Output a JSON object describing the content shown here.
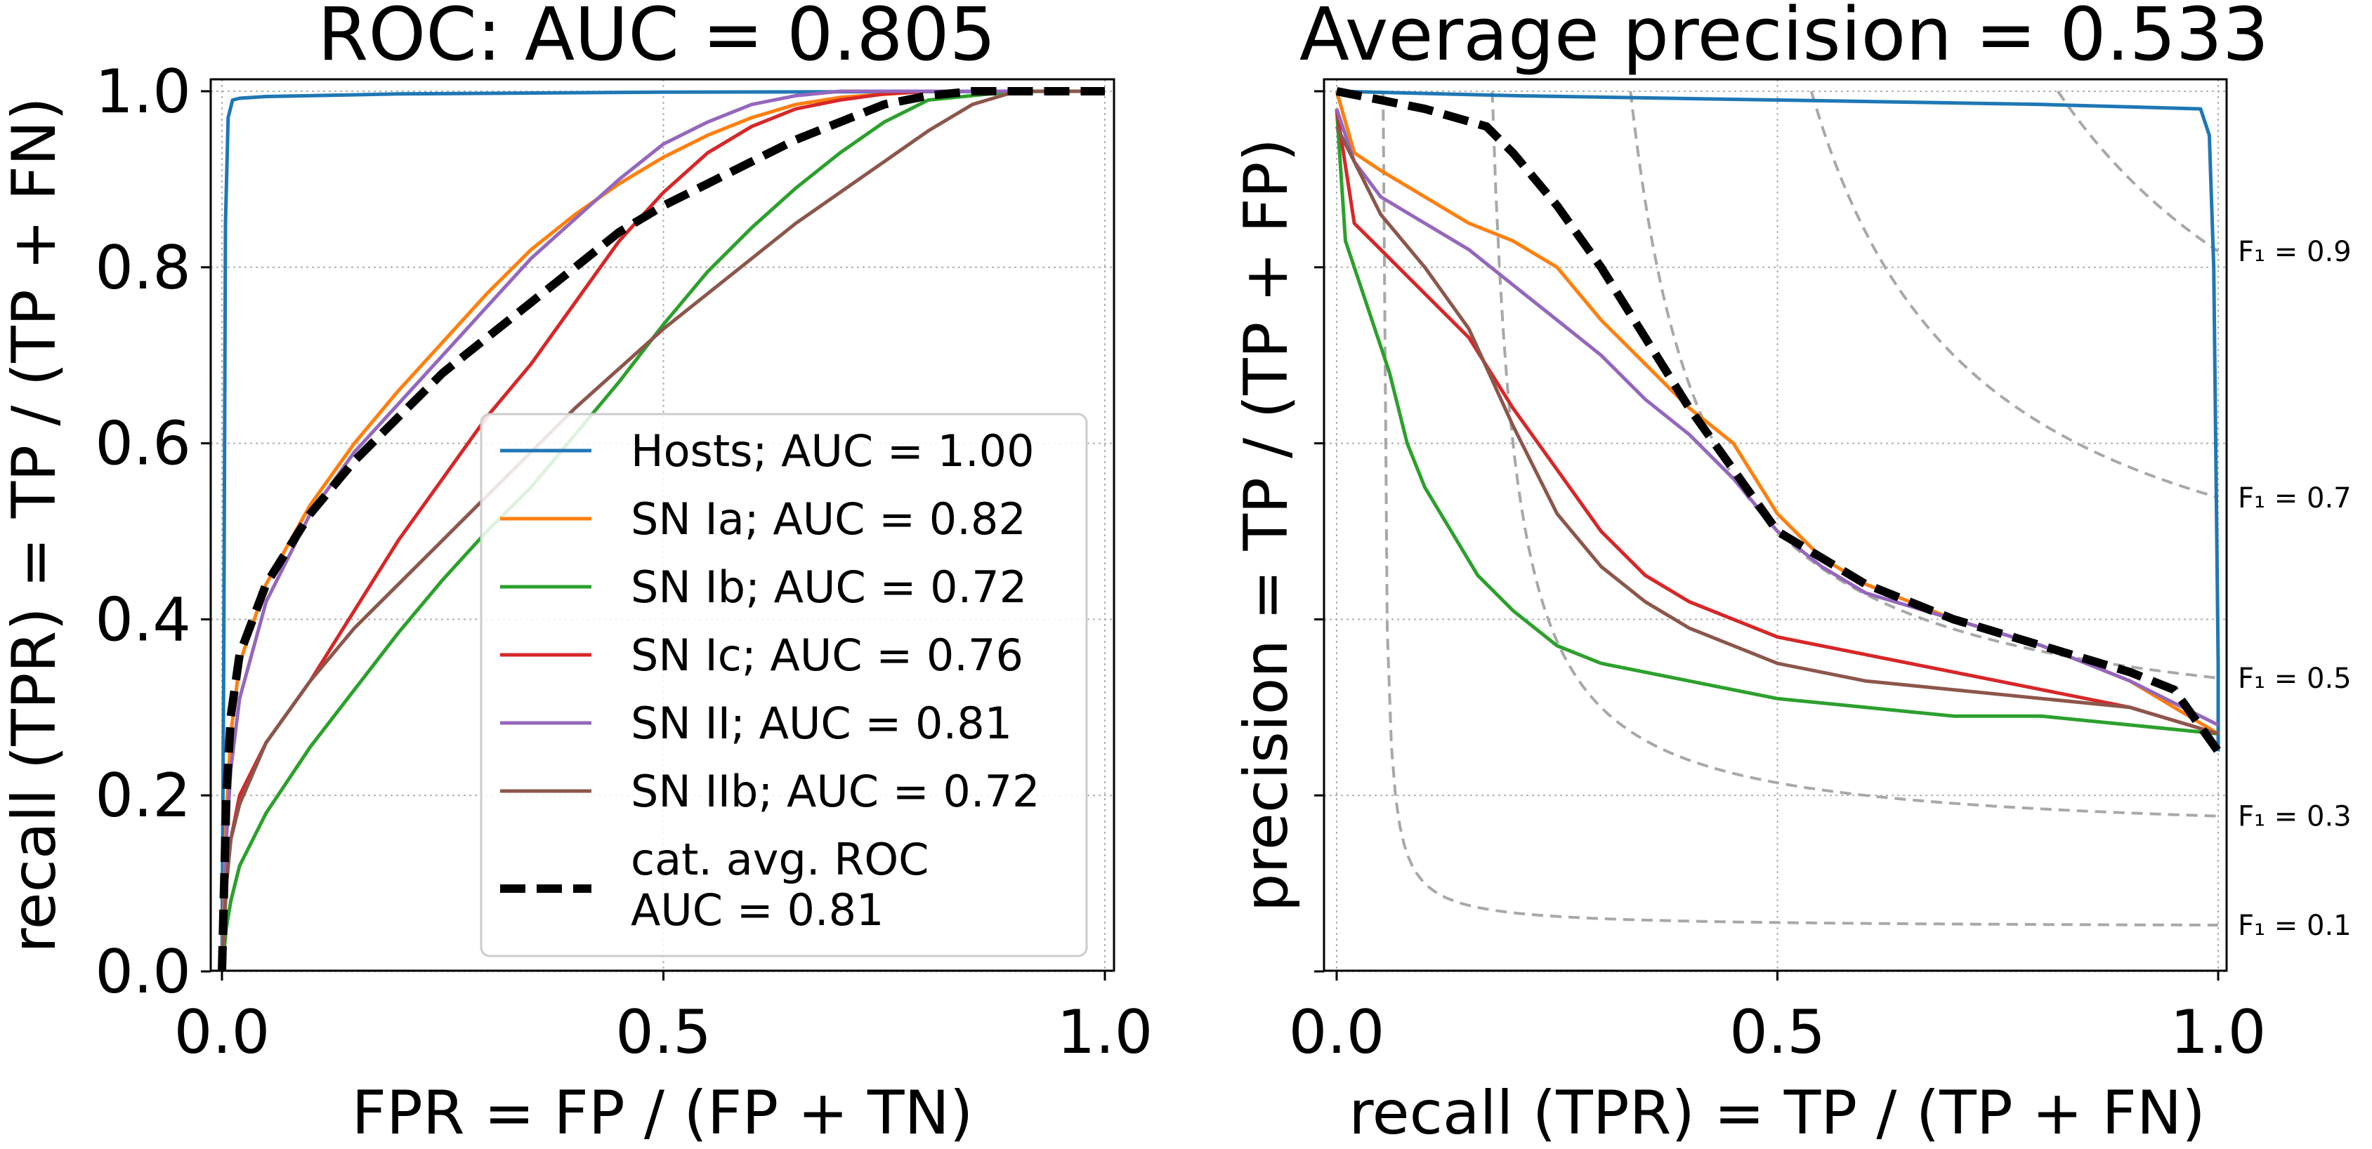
{
  "chart_data": [
    {
      "type": "line",
      "title": "ROC: AUC = 0.805",
      "xlabel": "FPR = FP / (FP + TN)",
      "ylabel": "recall (TPR) = TP / (TP + FN)",
      "xlim": [
        0,
        1
      ],
      "ylim": [
        0,
        1
      ],
      "xticks": [
        "0.0",
        "0.5",
        "1.0"
      ],
      "yticks": [
        "0.0",
        "0.2",
        "0.4",
        "0.6",
        "0.8",
        "1.0"
      ],
      "grid": true,
      "legend_position": "lower-right",
      "series": [
        {
          "name": "Hosts; AUC = 1.00",
          "color": "#1f77b4",
          "x": [
            0,
            0.002,
            0.004,
            0.007,
            0.012,
            0.02,
            0.05,
            0.2,
            0.5,
            1.0
          ],
          "y": [
            0,
            0.35,
            0.85,
            0.97,
            0.99,
            0.992,
            0.994,
            0.997,
            0.999,
            1.0
          ]
        },
        {
          "name": "SN Ia; AUC = 0.82",
          "color": "#ff7f0e",
          "x": [
            0,
            0.005,
            0.01,
            0.02,
            0.05,
            0.1,
            0.15,
            0.2,
            0.25,
            0.3,
            0.35,
            0.4,
            0.45,
            0.5,
            0.55,
            0.6,
            0.65,
            0.7,
            0.8,
            0.9,
            1.0
          ],
          "y": [
            0,
            0.18,
            0.27,
            0.35,
            0.44,
            0.53,
            0.6,
            0.66,
            0.715,
            0.77,
            0.82,
            0.86,
            0.895,
            0.925,
            0.95,
            0.97,
            0.985,
            0.993,
            1.0,
            1.0,
            1.0
          ]
        },
        {
          "name": "SN Ib; AUC = 0.72",
          "color": "#2ca02c",
          "x": [
            0,
            0.005,
            0.01,
            0.02,
            0.05,
            0.1,
            0.15,
            0.2,
            0.25,
            0.3,
            0.35,
            0.4,
            0.45,
            0.5,
            0.55,
            0.6,
            0.65,
            0.7,
            0.75,
            0.8,
            0.9,
            1.0
          ],
          "y": [
            0,
            0.05,
            0.08,
            0.12,
            0.18,
            0.255,
            0.32,
            0.385,
            0.445,
            0.5,
            0.55,
            0.61,
            0.67,
            0.735,
            0.795,
            0.845,
            0.89,
            0.93,
            0.965,
            0.99,
            1.0,
            1.0
          ]
        },
        {
          "name": "SN Ic; AUC = 0.76",
          "color": "#d62728",
          "x": [
            0,
            0.005,
            0.01,
            0.02,
            0.05,
            0.1,
            0.15,
            0.2,
            0.25,
            0.3,
            0.35,
            0.4,
            0.45,
            0.5,
            0.55,
            0.6,
            0.65,
            0.7,
            0.75,
            0.8,
            0.9,
            1.0
          ],
          "y": [
            0,
            0.1,
            0.15,
            0.2,
            0.26,
            0.33,
            0.41,
            0.49,
            0.56,
            0.63,
            0.69,
            0.76,
            0.83,
            0.885,
            0.93,
            0.96,
            0.98,
            0.99,
            0.997,
            1.0,
            1.0,
            1.0
          ]
        },
        {
          "name": "SN II; AUC = 0.81",
          "color": "#9467bd",
          "x": [
            0,
            0.005,
            0.01,
            0.02,
            0.05,
            0.1,
            0.15,
            0.2,
            0.25,
            0.3,
            0.35,
            0.4,
            0.45,
            0.5,
            0.55,
            0.6,
            0.65,
            0.7,
            0.8,
            0.9,
            1.0
          ],
          "y": [
            0,
            0.15,
            0.23,
            0.31,
            0.42,
            0.52,
            0.59,
            0.645,
            0.7,
            0.755,
            0.81,
            0.855,
            0.9,
            0.94,
            0.965,
            0.985,
            0.995,
            1.0,
            1.0,
            1.0,
            1.0
          ]
        },
        {
          "name": "SN IIb; AUC = 0.72",
          "color": "#8c564b",
          "x": [
            0,
            0.005,
            0.01,
            0.02,
            0.05,
            0.1,
            0.15,
            0.2,
            0.25,
            0.3,
            0.35,
            0.4,
            0.45,
            0.5,
            0.55,
            0.6,
            0.65,
            0.7,
            0.75,
            0.8,
            0.85,
            0.9,
            1.0
          ],
          "y": [
            0,
            0.1,
            0.15,
            0.19,
            0.26,
            0.33,
            0.39,
            0.44,
            0.49,
            0.54,
            0.59,
            0.64,
            0.685,
            0.73,
            0.77,
            0.81,
            0.85,
            0.885,
            0.92,
            0.955,
            0.985,
            1.0,
            1.0
          ]
        },
        {
          "name": "cat. avg. ROC\nAUC = 0.81",
          "color": "#000000",
          "style": "dashed",
          "x": [
            0,
            0.005,
            0.01,
            0.02,
            0.05,
            0.1,
            0.15,
            0.2,
            0.25,
            0.3,
            0.35,
            0.4,
            0.45,
            0.5,
            0.55,
            0.6,
            0.65,
            0.7,
            0.75,
            0.8,
            0.85,
            0.9,
            1.0
          ],
          "y": [
            0,
            0.2,
            0.29,
            0.36,
            0.44,
            0.52,
            0.58,
            0.63,
            0.68,
            0.72,
            0.76,
            0.8,
            0.84,
            0.87,
            0.895,
            0.92,
            0.945,
            0.965,
            0.985,
            0.995,
            1.0,
            1.0,
            1.0
          ]
        }
      ]
    },
    {
      "type": "line",
      "title": "Average precision = 0.533",
      "xlabel": "recall (TPR) = TP / (TP + FN)",
      "ylabel": "precision = TP / (TP + FP)",
      "xlim": [
        0,
        1
      ],
      "ylim": [
        0,
        1
      ],
      "xticks": [
        "0.0",
        "0.5",
        "1.0"
      ],
      "grid": true,
      "iso_f1": [
        {
          "f1": 0.1,
          "label": "F₁ = 0.1"
        },
        {
          "f1": 0.3,
          "label": "F₁ = 0.3"
        },
        {
          "f1": 0.5,
          "label": "F₁ = 0.5"
        },
        {
          "f1": 0.7,
          "label": "F₁ = 0.7"
        },
        {
          "f1": 0.9,
          "label": "F₁ = 0.9"
        }
      ],
      "series": [
        {
          "name": "Hosts",
          "color": "#1f77b4",
          "x": [
            0,
            0.2,
            0.5,
            0.8,
            0.98,
            0.99,
            0.995,
            1.0,
            1.0
          ],
          "y": [
            1.0,
            0.995,
            0.99,
            0.985,
            0.98,
            0.95,
            0.8,
            0.35,
            0.25
          ]
        },
        {
          "name": "SN Ia",
          "color": "#ff7f0e",
          "x": [
            0,
            0.02,
            0.05,
            0.1,
            0.15,
            0.2,
            0.25,
            0.3,
            0.35,
            0.4,
            0.45,
            0.5,
            0.55,
            0.6,
            0.7,
            0.8,
            0.9,
            0.95,
            1.0
          ],
          "y": [
            1.0,
            0.93,
            0.91,
            0.88,
            0.85,
            0.83,
            0.8,
            0.74,
            0.69,
            0.64,
            0.6,
            0.52,
            0.47,
            0.44,
            0.4,
            0.37,
            0.33,
            0.3,
            0.27
          ]
        },
        {
          "name": "SN Ib",
          "color": "#2ca02c",
          "x": [
            0,
            0.01,
            0.02,
            0.04,
            0.06,
            0.08,
            0.1,
            0.13,
            0.16,
            0.2,
            0.25,
            0.3,
            0.4,
            0.5,
            0.6,
            0.7,
            0.8,
            0.9,
            1.0
          ],
          "y": [
            0.98,
            0.83,
            0.8,
            0.74,
            0.68,
            0.6,
            0.55,
            0.5,
            0.45,
            0.41,
            0.37,
            0.35,
            0.33,
            0.31,
            0.3,
            0.29,
            0.29,
            0.28,
            0.27
          ]
        },
        {
          "name": "SN Ic",
          "color": "#d62728",
          "x": [
            0,
            0.02,
            0.05,
            0.1,
            0.15,
            0.2,
            0.25,
            0.3,
            0.35,
            0.4,
            0.5,
            0.6,
            0.7,
            0.8,
            0.9,
            1.0
          ],
          "y": [
            0.98,
            0.85,
            0.82,
            0.77,
            0.72,
            0.64,
            0.57,
            0.5,
            0.45,
            0.42,
            0.38,
            0.36,
            0.34,
            0.32,
            0.3,
            0.27
          ]
        },
        {
          "name": "SN II",
          "color": "#9467bd",
          "x": [
            0,
            0.02,
            0.05,
            0.1,
            0.15,
            0.2,
            0.25,
            0.3,
            0.35,
            0.4,
            0.45,
            0.5,
            0.55,
            0.6,
            0.7,
            0.8,
            0.9,
            1.0
          ],
          "y": [
            0.98,
            0.92,
            0.88,
            0.85,
            0.82,
            0.78,
            0.74,
            0.7,
            0.65,
            0.61,
            0.56,
            0.5,
            0.46,
            0.43,
            0.4,
            0.37,
            0.33,
            0.28
          ]
        },
        {
          "name": "SN IIb",
          "color": "#8c564b",
          "x": [
            0,
            0.02,
            0.05,
            0.1,
            0.15,
            0.2,
            0.25,
            0.3,
            0.35,
            0.4,
            0.5,
            0.6,
            0.7,
            0.8,
            0.9,
            1.0
          ],
          "y": [
            0.96,
            0.92,
            0.86,
            0.8,
            0.73,
            0.62,
            0.52,
            0.46,
            0.42,
            0.39,
            0.35,
            0.33,
            0.32,
            0.31,
            0.3,
            0.27
          ]
        },
        {
          "name": "cat. avg.",
          "color": "#000000",
          "style": "dashed",
          "x": [
            0,
            0.05,
            0.1,
            0.17,
            0.2,
            0.25,
            0.3,
            0.35,
            0.4,
            0.45,
            0.5,
            0.6,
            0.7,
            0.8,
            0.9,
            0.95,
            1.0
          ],
          "y": [
            1.0,
            0.99,
            0.98,
            0.96,
            0.93,
            0.87,
            0.8,
            0.72,
            0.64,
            0.57,
            0.5,
            0.44,
            0.4,
            0.37,
            0.34,
            0.32,
            0.25
          ]
        }
      ]
    }
  ]
}
